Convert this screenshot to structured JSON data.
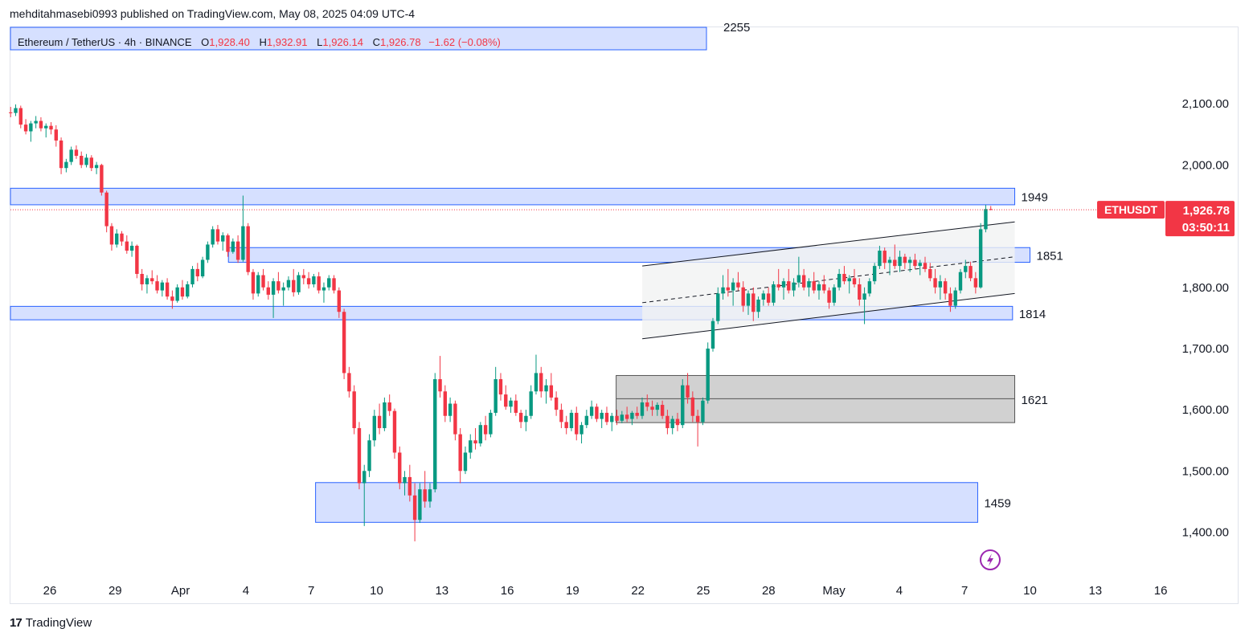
{
  "header": {
    "publisher_line": "mehditahmasebi0993 published on TradingView.com, May 08, 2025 04:09 UTC-4"
  },
  "legend": {
    "symbol": "Ethereum / TetherUS · 4h · BINANCE",
    "o_label": "O",
    "o_value": "1,928.40",
    "h_label": "H",
    "h_value": "1,932.91",
    "l_label": "L",
    "l_value": "1,926.14",
    "c_label": "C",
    "c_value": "1,926.78",
    "change": "−1.62 (−0.08%)"
  },
  "footer": {
    "brand": "TradingView",
    "logo_mark": "17"
  },
  "price_badge": {
    "ticker": "ETHUSDT",
    "price": "1,926.78",
    "countdown": "03:50:11"
  },
  "colors": {
    "up": "#089981",
    "down": "#f23645",
    "zone_fill": "#d6e0ff",
    "zone_border": "#2962ff",
    "gray_zone": "#d1d1d1",
    "channel": "#f1f2f3"
  },
  "icons": {
    "alert": "lightning-icon"
  },
  "chart_data": {
    "type": "candlestick",
    "symbol": "ETHUSDT",
    "interval": "4h",
    "y_ticks": [
      2100,
      2000,
      1800,
      1700,
      1600,
      1500,
      1400
    ],
    "y_tick_labels": [
      "2,100.00",
      "2,000.00",
      "1,800.00",
      "1,700.00",
      "1,600.00",
      "1,500.00",
      "1,400.00"
    ],
    "ylim": [
      1335,
      2225
    ],
    "x_tick_labels": [
      "26",
      "29",
      "Apr",
      "4",
      "7",
      "10",
      "13",
      "16",
      "19",
      "22",
      "25",
      "28",
      "May",
      "4",
      "7",
      "10",
      "13",
      "16"
    ],
    "x_tick_days": [
      0,
      3,
      6,
      9,
      12,
      15,
      18,
      21,
      24,
      27,
      30,
      33,
      36,
      39,
      42,
      45,
      48,
      51
    ],
    "last_price": 1926.78,
    "top_label_partial": "2255",
    "zones": [
      {
        "label": "1949",
        "low": 1935,
        "high": 1962,
        "start_day": -2,
        "end_day": 44.3
      },
      {
        "label": "1851",
        "low": 1841,
        "high": 1865,
        "start_day": 8.2,
        "end_day": 45
      },
      {
        "label": "1814",
        "low": 1747,
        "high": 1769,
        "start_day": -2,
        "end_day": 44.2
      },
      {
        "label": "1621",
        "low": 1579,
        "high": 1656,
        "start_day": 26,
        "end_day": 44.3,
        "style": "gray",
        "midline": 1618
      },
      {
        "label": "1459",
        "low": 1416,
        "high": 1481,
        "start_day": 12.2,
        "end_day": 42.6
      }
    ],
    "channel": {
      "start_day": 27.2,
      "end_day": 44.3,
      "upper": [
        1835,
        1907
      ],
      "lower": [
        1716,
        1790
      ],
      "mid": [
        1775,
        1850
      ]
    },
    "ohlc_day_step": 0.1667,
    "ohlc_start_day": -1.8,
    "ohlc": [
      [
        2086,
        2095,
        2078,
        2085
      ],
      [
        2085,
        2099,
        2080,
        2093
      ],
      [
        2093,
        2097,
        2060,
        2066
      ],
      [
        2066,
        2075,
        2050,
        2055
      ],
      [
        2055,
        2072,
        2038,
        2068
      ],
      [
        2068,
        2080,
        2060,
        2072
      ],
      [
        2072,
        2078,
        2055,
        2060
      ],
      [
        2060,
        2068,
        2045,
        2064
      ],
      [
        2064,
        2070,
        2050,
        2058
      ],
      [
        2058,
        2065,
        2030,
        2040
      ],
      [
        2040,
        2045,
        1985,
        1995
      ],
      [
        1995,
        2010,
        1988,
        2005
      ],
      [
        2005,
        2030,
        2000,
        2025
      ],
      [
        2025,
        2032,
        2010,
        2015
      ],
      [
        2015,
        2022,
        1995,
        2000
      ],
      [
        2000,
        2018,
        1996,
        2012
      ],
      [
        2012,
        2016,
        1990,
        1995
      ],
      [
        1995,
        2005,
        1985,
        2000
      ],
      [
        2000,
        2002,
        1950,
        1955
      ],
      [
        1955,
        1958,
        1890,
        1900
      ],
      [
        1900,
        1905,
        1860,
        1870
      ],
      [
        1870,
        1895,
        1865,
        1888
      ],
      [
        1888,
        1892,
        1868,
        1875
      ],
      [
        1875,
        1885,
        1855,
        1860
      ],
      [
        1860,
        1875,
        1850,
        1868
      ],
      [
        1868,
        1870,
        1815,
        1822
      ],
      [
        1822,
        1830,
        1795,
        1805
      ],
      [
        1805,
        1820,
        1790,
        1815
      ],
      [
        1815,
        1828,
        1805,
        1810
      ],
      [
        1810,
        1820,
        1790,
        1795
      ],
      [
        1795,
        1812,
        1785,
        1808
      ],
      [
        1808,
        1815,
        1780,
        1785
      ],
      [
        1785,
        1795,
        1765,
        1778
      ],
      [
        1778,
        1805,
        1775,
        1800
      ],
      [
        1800,
        1812,
        1780,
        1785
      ],
      [
        1785,
        1810,
        1782,
        1805
      ],
      [
        1805,
        1835,
        1800,
        1830
      ],
      [
        1830,
        1840,
        1810,
        1818
      ],
      [
        1818,
        1850,
        1815,
        1845
      ],
      [
        1845,
        1875,
        1840,
        1870
      ],
      [
        1870,
        1900,
        1865,
        1895
      ],
      [
        1895,
        1902,
        1870,
        1875
      ],
      [
        1875,
        1890,
        1860,
        1885
      ],
      [
        1885,
        1888,
        1850,
        1858
      ],
      [
        1858,
        1880,
        1855,
        1875
      ],
      [
        1875,
        1885,
        1840,
        1845
      ],
      [
        1845,
        1950,
        1842,
        1900
      ],
      [
        1900,
        1905,
        1820,
        1825
      ],
      [
        1825,
        1830,
        1780,
        1790
      ],
      [
        1790,
        1825,
        1785,
        1820
      ],
      [
        1820,
        1830,
        1795,
        1800
      ],
      [
        1800,
        1810,
        1780,
        1788
      ],
      [
        1788,
        1815,
        1750,
        1810
      ],
      [
        1810,
        1825,
        1790,
        1795
      ],
      [
        1795,
        1808,
        1770,
        1800
      ],
      [
        1800,
        1818,
        1795,
        1812
      ],
      [
        1812,
        1830,
        1785,
        1792
      ],
      [
        1792,
        1825,
        1788,
        1820
      ],
      [
        1820,
        1830,
        1805,
        1815
      ],
      [
        1815,
        1825,
        1798,
        1805
      ],
      [
        1805,
        1822,
        1800,
        1818
      ],
      [
        1818,
        1825,
        1790,
        1795
      ],
      [
        1795,
        1808,
        1775,
        1800
      ],
      [
        1800,
        1820,
        1795,
        1815
      ],
      [
        1815,
        1820,
        1790,
        1795
      ],
      [
        1795,
        1800,
        1750,
        1760
      ],
      [
        1760,
        1765,
        1650,
        1660
      ],
      [
        1660,
        1670,
        1620,
        1630
      ],
      [
        1630,
        1640,
        1560,
        1570
      ],
      [
        1570,
        1580,
        1470,
        1480
      ],
      [
        1480,
        1510,
        1410,
        1500
      ],
      [
        1500,
        1560,
        1490,
        1550
      ],
      [
        1550,
        1600,
        1540,
        1590
      ],
      [
        1590,
        1610,
        1560,
        1570
      ],
      [
        1570,
        1620,
        1565,
        1612
      ],
      [
        1612,
        1625,
        1590,
        1598
      ],
      [
        1598,
        1602,
        1520,
        1530
      ],
      [
        1530,
        1540,
        1470,
        1480
      ],
      [
        1480,
        1500,
        1460,
        1490
      ],
      [
        1490,
        1510,
        1450,
        1460
      ],
      [
        1460,
        1480,
        1385,
        1420
      ],
      [
        1420,
        1480,
        1415,
        1470
      ],
      [
        1470,
        1500,
        1440,
        1450
      ],
      [
        1450,
        1480,
        1440,
        1470
      ],
      [
        1470,
        1660,
        1465,
        1650
      ],
      [
        1650,
        1688,
        1620,
        1630
      ],
      [
        1630,
        1640,
        1580,
        1590
      ],
      [
        1590,
        1620,
        1580,
        1610
      ],
      [
        1610,
        1615,
        1550,
        1560
      ],
      [
        1560,
        1570,
        1480,
        1500
      ],
      [
        1500,
        1540,
        1495,
        1530
      ],
      [
        1530,
        1560,
        1520,
        1550
      ],
      [
        1550,
        1570,
        1535,
        1545
      ],
      [
        1545,
        1580,
        1540,
        1575
      ],
      [
        1575,
        1590,
        1550,
        1560
      ],
      [
        1560,
        1600,
        1555,
        1595
      ],
      [
        1595,
        1670,
        1590,
        1650
      ],
      [
        1650,
        1660,
        1615,
        1625
      ],
      [
        1625,
        1640,
        1600,
        1605
      ],
      [
        1605,
        1620,
        1595,
        1615
      ],
      [
        1615,
        1625,
        1590,
        1595
      ],
      [
        1595,
        1600,
        1570,
        1580
      ],
      [
        1580,
        1600,
        1565,
        1590
      ],
      [
        1590,
        1640,
        1585,
        1630
      ],
      [
        1630,
        1690,
        1625,
        1660
      ],
      [
        1660,
        1670,
        1620,
        1630
      ],
      [
        1630,
        1650,
        1610,
        1640
      ],
      [
        1640,
        1660,
        1615,
        1620
      ],
      [
        1620,
        1630,
        1590,
        1600
      ],
      [
        1600,
        1610,
        1570,
        1580
      ],
      [
        1580,
        1590,
        1560,
        1570
      ],
      [
        1570,
        1600,
        1565,
        1595
      ],
      [
        1595,
        1605,
        1550,
        1560
      ],
      [
        1560,
        1580,
        1545,
        1575
      ],
      [
        1575,
        1600,
        1570,
        1590
      ],
      [
        1590,
        1615,
        1585,
        1605
      ],
      [
        1605,
        1610,
        1580,
        1585
      ],
      [
        1585,
        1600,
        1570,
        1595
      ],
      [
        1595,
        1605,
        1575,
        1580
      ],
      [
        1580,
        1595,
        1565,
        1590
      ],
      [
        1590,
        1600,
        1575,
        1582
      ],
      [
        1582,
        1598,
        1578,
        1592
      ],
      [
        1592,
        1605,
        1580,
        1585
      ],
      [
        1585,
        1598,
        1575,
        1595
      ],
      [
        1595,
        1605,
        1585,
        1590
      ],
      [
        1590,
        1620,
        1585,
        1612
      ],
      [
        1612,
        1625,
        1598,
        1605
      ],
      [
        1605,
        1615,
        1590,
        1600
      ],
      [
        1600,
        1612,
        1590,
        1608
      ],
      [
        1608,
        1615,
        1585,
        1590
      ],
      [
        1590,
        1600,
        1560,
        1570
      ],
      [
        1570,
        1590,
        1560,
        1585
      ],
      [
        1585,
        1595,
        1565,
        1575
      ],
      [
        1575,
        1650,
        1570,
        1640
      ],
      [
        1640,
        1660,
        1610,
        1620
      ],
      [
        1620,
        1630,
        1580,
        1590
      ],
      [
        1590,
        1600,
        1540,
        1580
      ],
      [
        1580,
        1620,
        1575,
        1615
      ],
      [
        1615,
        1710,
        1610,
        1700
      ],
      [
        1700,
        1750,
        1695,
        1745
      ],
      [
        1745,
        1800,
        1740,
        1790
      ],
      [
        1790,
        1820,
        1780,
        1800
      ],
      [
        1800,
        1830,
        1785,
        1795
      ],
      [
        1795,
        1815,
        1770,
        1808
      ],
      [
        1808,
        1825,
        1795,
        1800
      ],
      [
        1800,
        1810,
        1760,
        1770
      ],
      [
        1770,
        1795,
        1755,
        1790
      ],
      [
        1790,
        1800,
        1745,
        1760
      ],
      [
        1760,
        1785,
        1750,
        1780
      ],
      [
        1780,
        1795,
        1770,
        1790
      ],
      [
        1790,
        1800,
        1770,
        1775
      ],
      [
        1775,
        1810,
        1770,
        1805
      ],
      [
        1805,
        1830,
        1795,
        1800
      ],
      [
        1800,
        1815,
        1780,
        1810
      ],
      [
        1810,
        1830,
        1790,
        1795
      ],
      [
        1795,
        1815,
        1785,
        1808
      ],
      [
        1808,
        1850,
        1800,
        1820
      ],
      [
        1820,
        1830,
        1795,
        1800
      ],
      [
        1800,
        1815,
        1785,
        1810
      ],
      [
        1810,
        1825,
        1790,
        1795
      ],
      [
        1795,
        1810,
        1780,
        1805
      ],
      [
        1805,
        1820,
        1790,
        1795
      ],
      [
        1795,
        1800,
        1765,
        1775
      ],
      [
        1775,
        1805,
        1770,
        1800
      ],
      [
        1800,
        1830,
        1795,
        1822
      ],
      [
        1822,
        1835,
        1805,
        1810
      ],
      [
        1810,
        1820,
        1790,
        1815
      ],
      [
        1815,
        1830,
        1800,
        1805
      ],
      [
        1805,
        1815,
        1770,
        1780
      ],
      [
        1780,
        1800,
        1740,
        1790
      ],
      [
        1790,
        1815,
        1785,
        1810
      ],
      [
        1810,
        1840,
        1805,
        1835
      ],
      [
        1835,
        1868,
        1830,
        1860
      ],
      [
        1860,
        1865,
        1830,
        1840
      ],
      [
        1840,
        1850,
        1820,
        1845
      ],
      [
        1845,
        1870,
        1830,
        1835
      ],
      [
        1835,
        1860,
        1825,
        1850
      ],
      [
        1850,
        1855,
        1830,
        1840
      ],
      [
        1840,
        1850,
        1825,
        1845
      ],
      [
        1845,
        1855,
        1830,
        1835
      ],
      [
        1835,
        1845,
        1820,
        1840
      ],
      [
        1840,
        1850,
        1825,
        1830
      ],
      [
        1830,
        1840,
        1810,
        1815
      ],
      [
        1815,
        1830,
        1790,
        1800
      ],
      [
        1800,
        1820,
        1780,
        1810
      ],
      [
        1810,
        1815,
        1780,
        1790
      ],
      [
        1790,
        1800,
        1760,
        1770
      ],
      [
        1770,
        1800,
        1765,
        1795
      ],
      [
        1795,
        1830,
        1790,
        1825
      ],
      [
        1825,
        1845,
        1815,
        1835
      ],
      [
        1835,
        1842,
        1810,
        1815
      ],
      [
        1815,
        1825,
        1790,
        1800
      ],
      [
        1800,
        1905,
        1798,
        1895
      ],
      [
        1895,
        1935,
        1890,
        1928
      ],
      [
        1928,
        1933,
        1926,
        1927
      ]
    ]
  }
}
